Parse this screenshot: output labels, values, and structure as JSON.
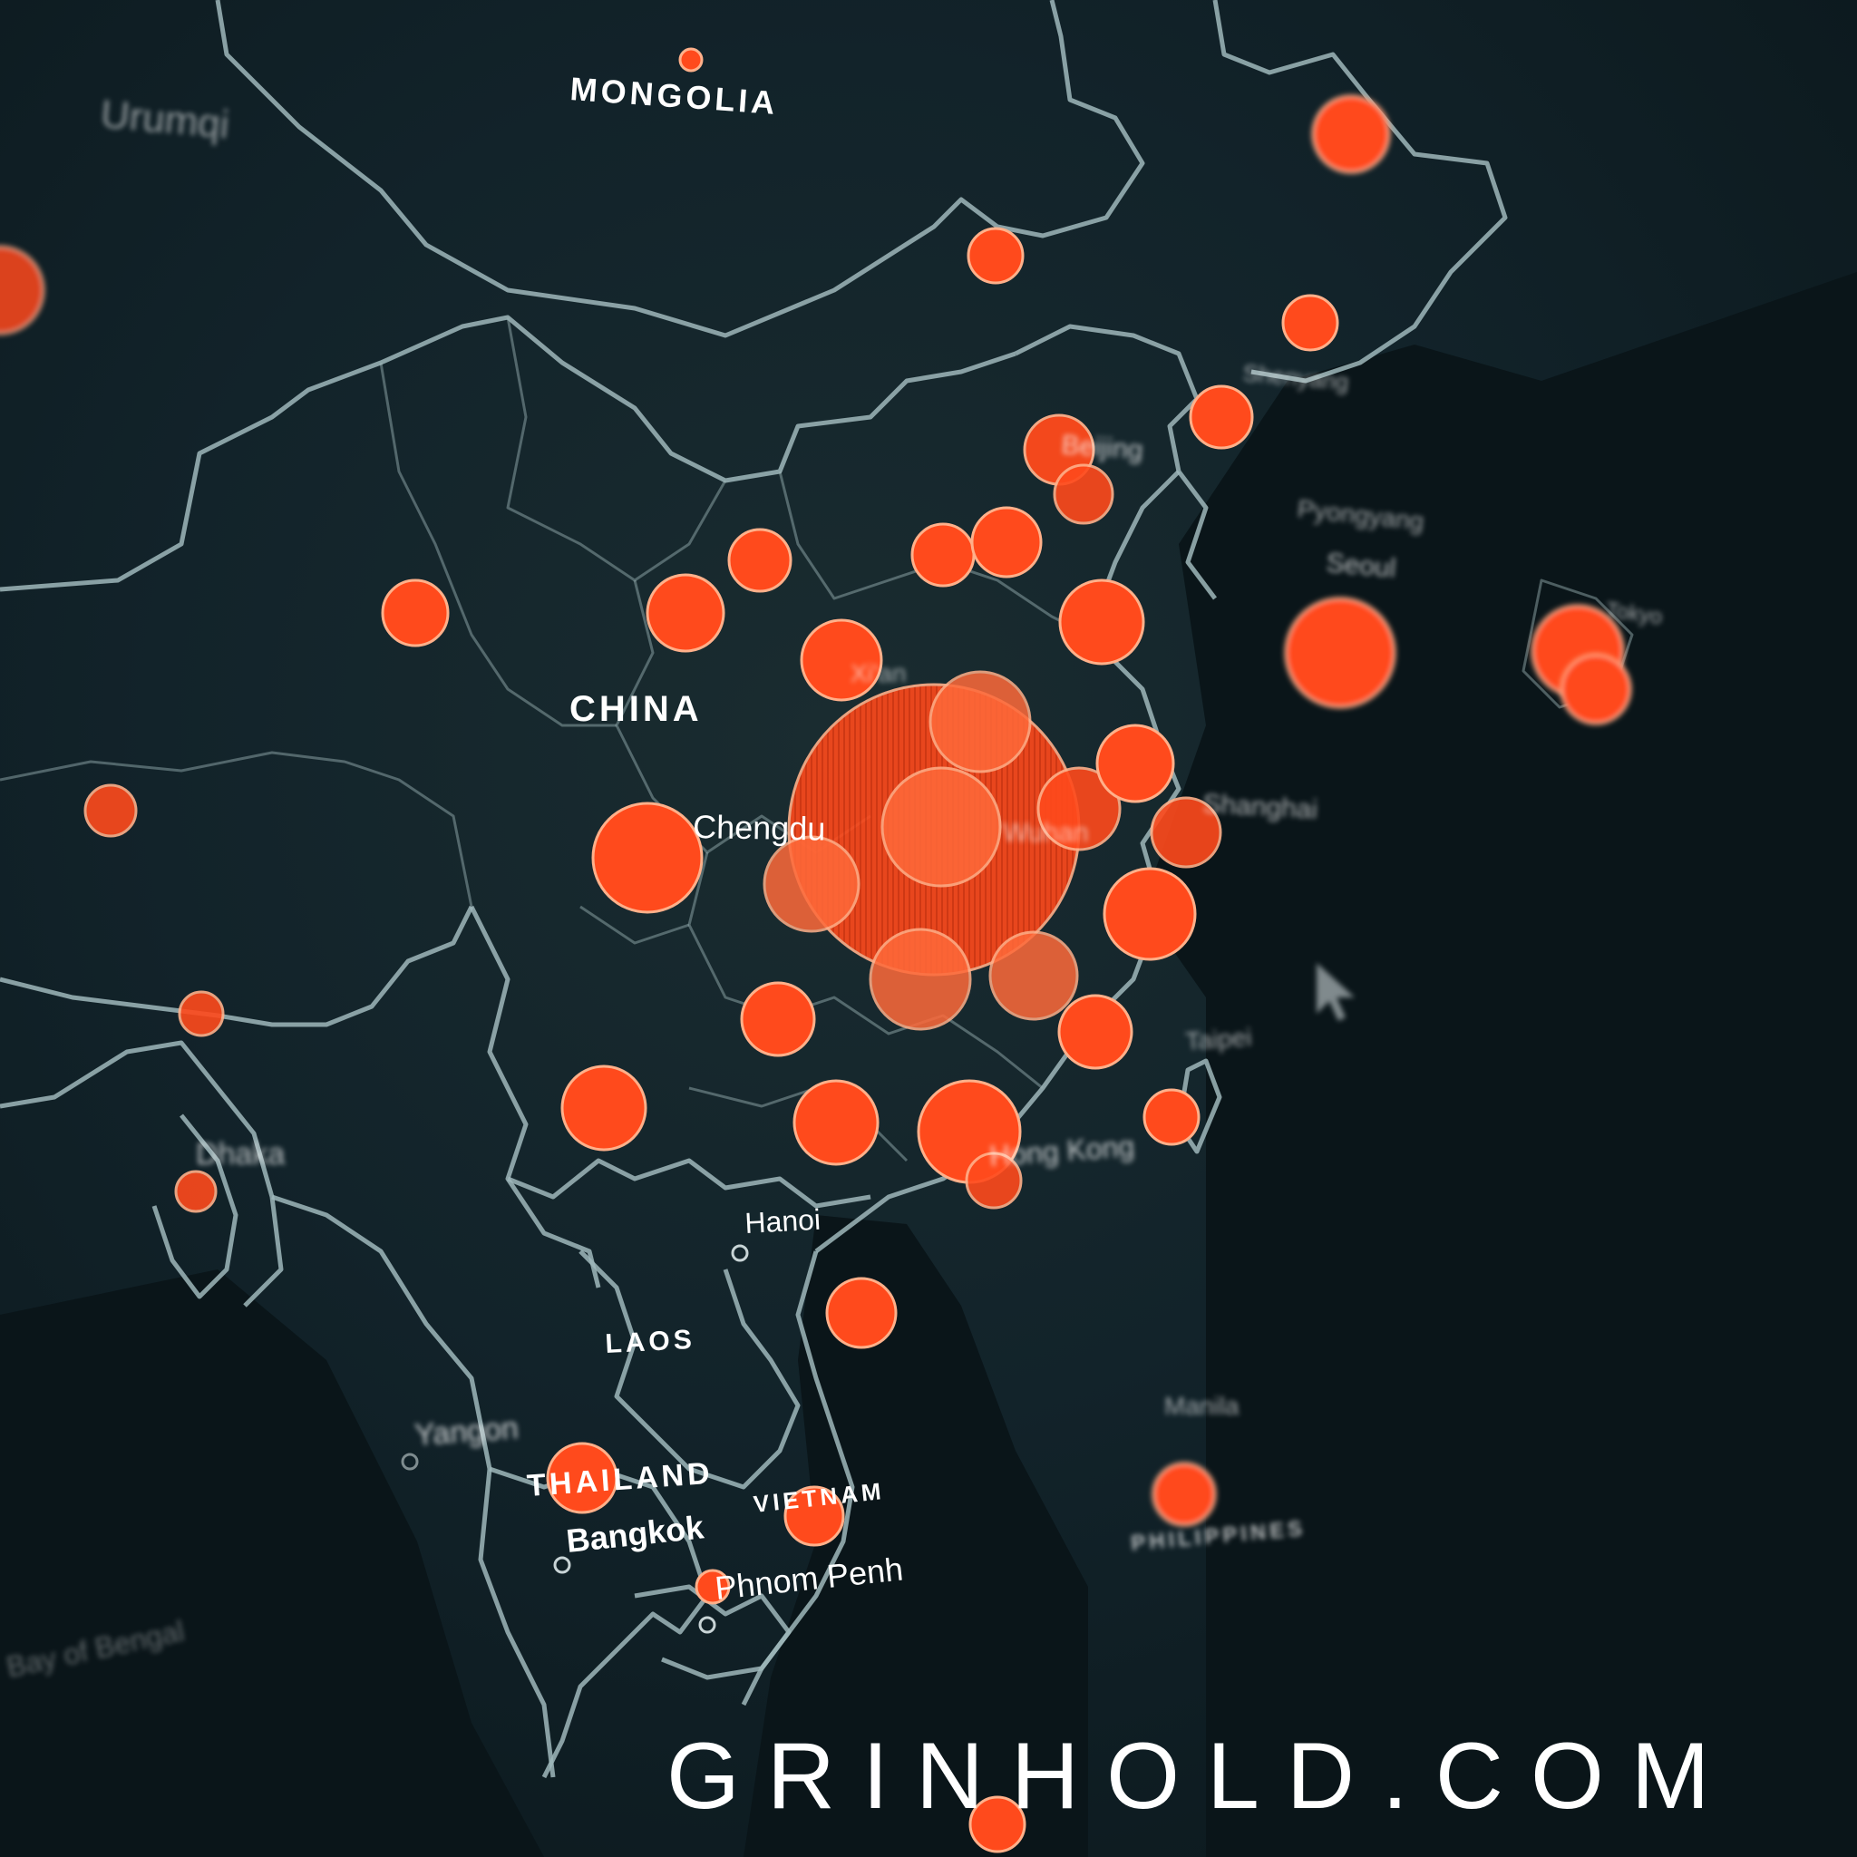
{
  "map": {
    "country_labels": [
      {
        "id": "mongolia",
        "text": "MONGOLIA"
      },
      {
        "id": "china",
        "text": "CHINA"
      },
      {
        "id": "laos",
        "text": "LAOS"
      },
      {
        "id": "thailand",
        "text": "THAILAND"
      },
      {
        "id": "vietnam",
        "text": "VIETNAM"
      },
      {
        "id": "philippines",
        "text": "PHILIPPINES"
      }
    ],
    "city_labels": [
      {
        "id": "urumqi",
        "text": "Urumqi"
      },
      {
        "id": "beijing",
        "text": "Beijing"
      },
      {
        "id": "shenyang",
        "text": "Shenyang"
      },
      {
        "id": "pyongyang",
        "text": "Pyongyang"
      },
      {
        "id": "seoul",
        "text": "Seoul"
      },
      {
        "id": "tokyo",
        "text": "Tokyo"
      },
      {
        "id": "xian",
        "text": "Xi'an"
      },
      {
        "id": "chengdu",
        "text": "Chengdu"
      },
      {
        "id": "wuhan",
        "text": "Wuhan"
      },
      {
        "id": "shanghai",
        "text": "Shanghai"
      },
      {
        "id": "taipei",
        "text": "Taipei"
      },
      {
        "id": "hongkong",
        "text": "Hong Kong"
      },
      {
        "id": "hanoi",
        "text": "Hanoi"
      },
      {
        "id": "dhaka",
        "text": "Dhaka"
      },
      {
        "id": "yangon",
        "text": "Yangon"
      },
      {
        "id": "bangkok",
        "text": "Bangkok"
      },
      {
        "id": "phnompenh",
        "text": "Phnom Penh"
      },
      {
        "id": "manila",
        "text": "Manila"
      },
      {
        "id": "bayofbengal",
        "text": "Bay of Bengal"
      }
    ],
    "marker_color": "#ff4a1c",
    "marker_highlight": "#ff6a3a",
    "border_color": "#9fb7bb",
    "background_color": "#0b1a1e"
  },
  "watermark": {
    "text": "GRINHOLD.COM"
  }
}
